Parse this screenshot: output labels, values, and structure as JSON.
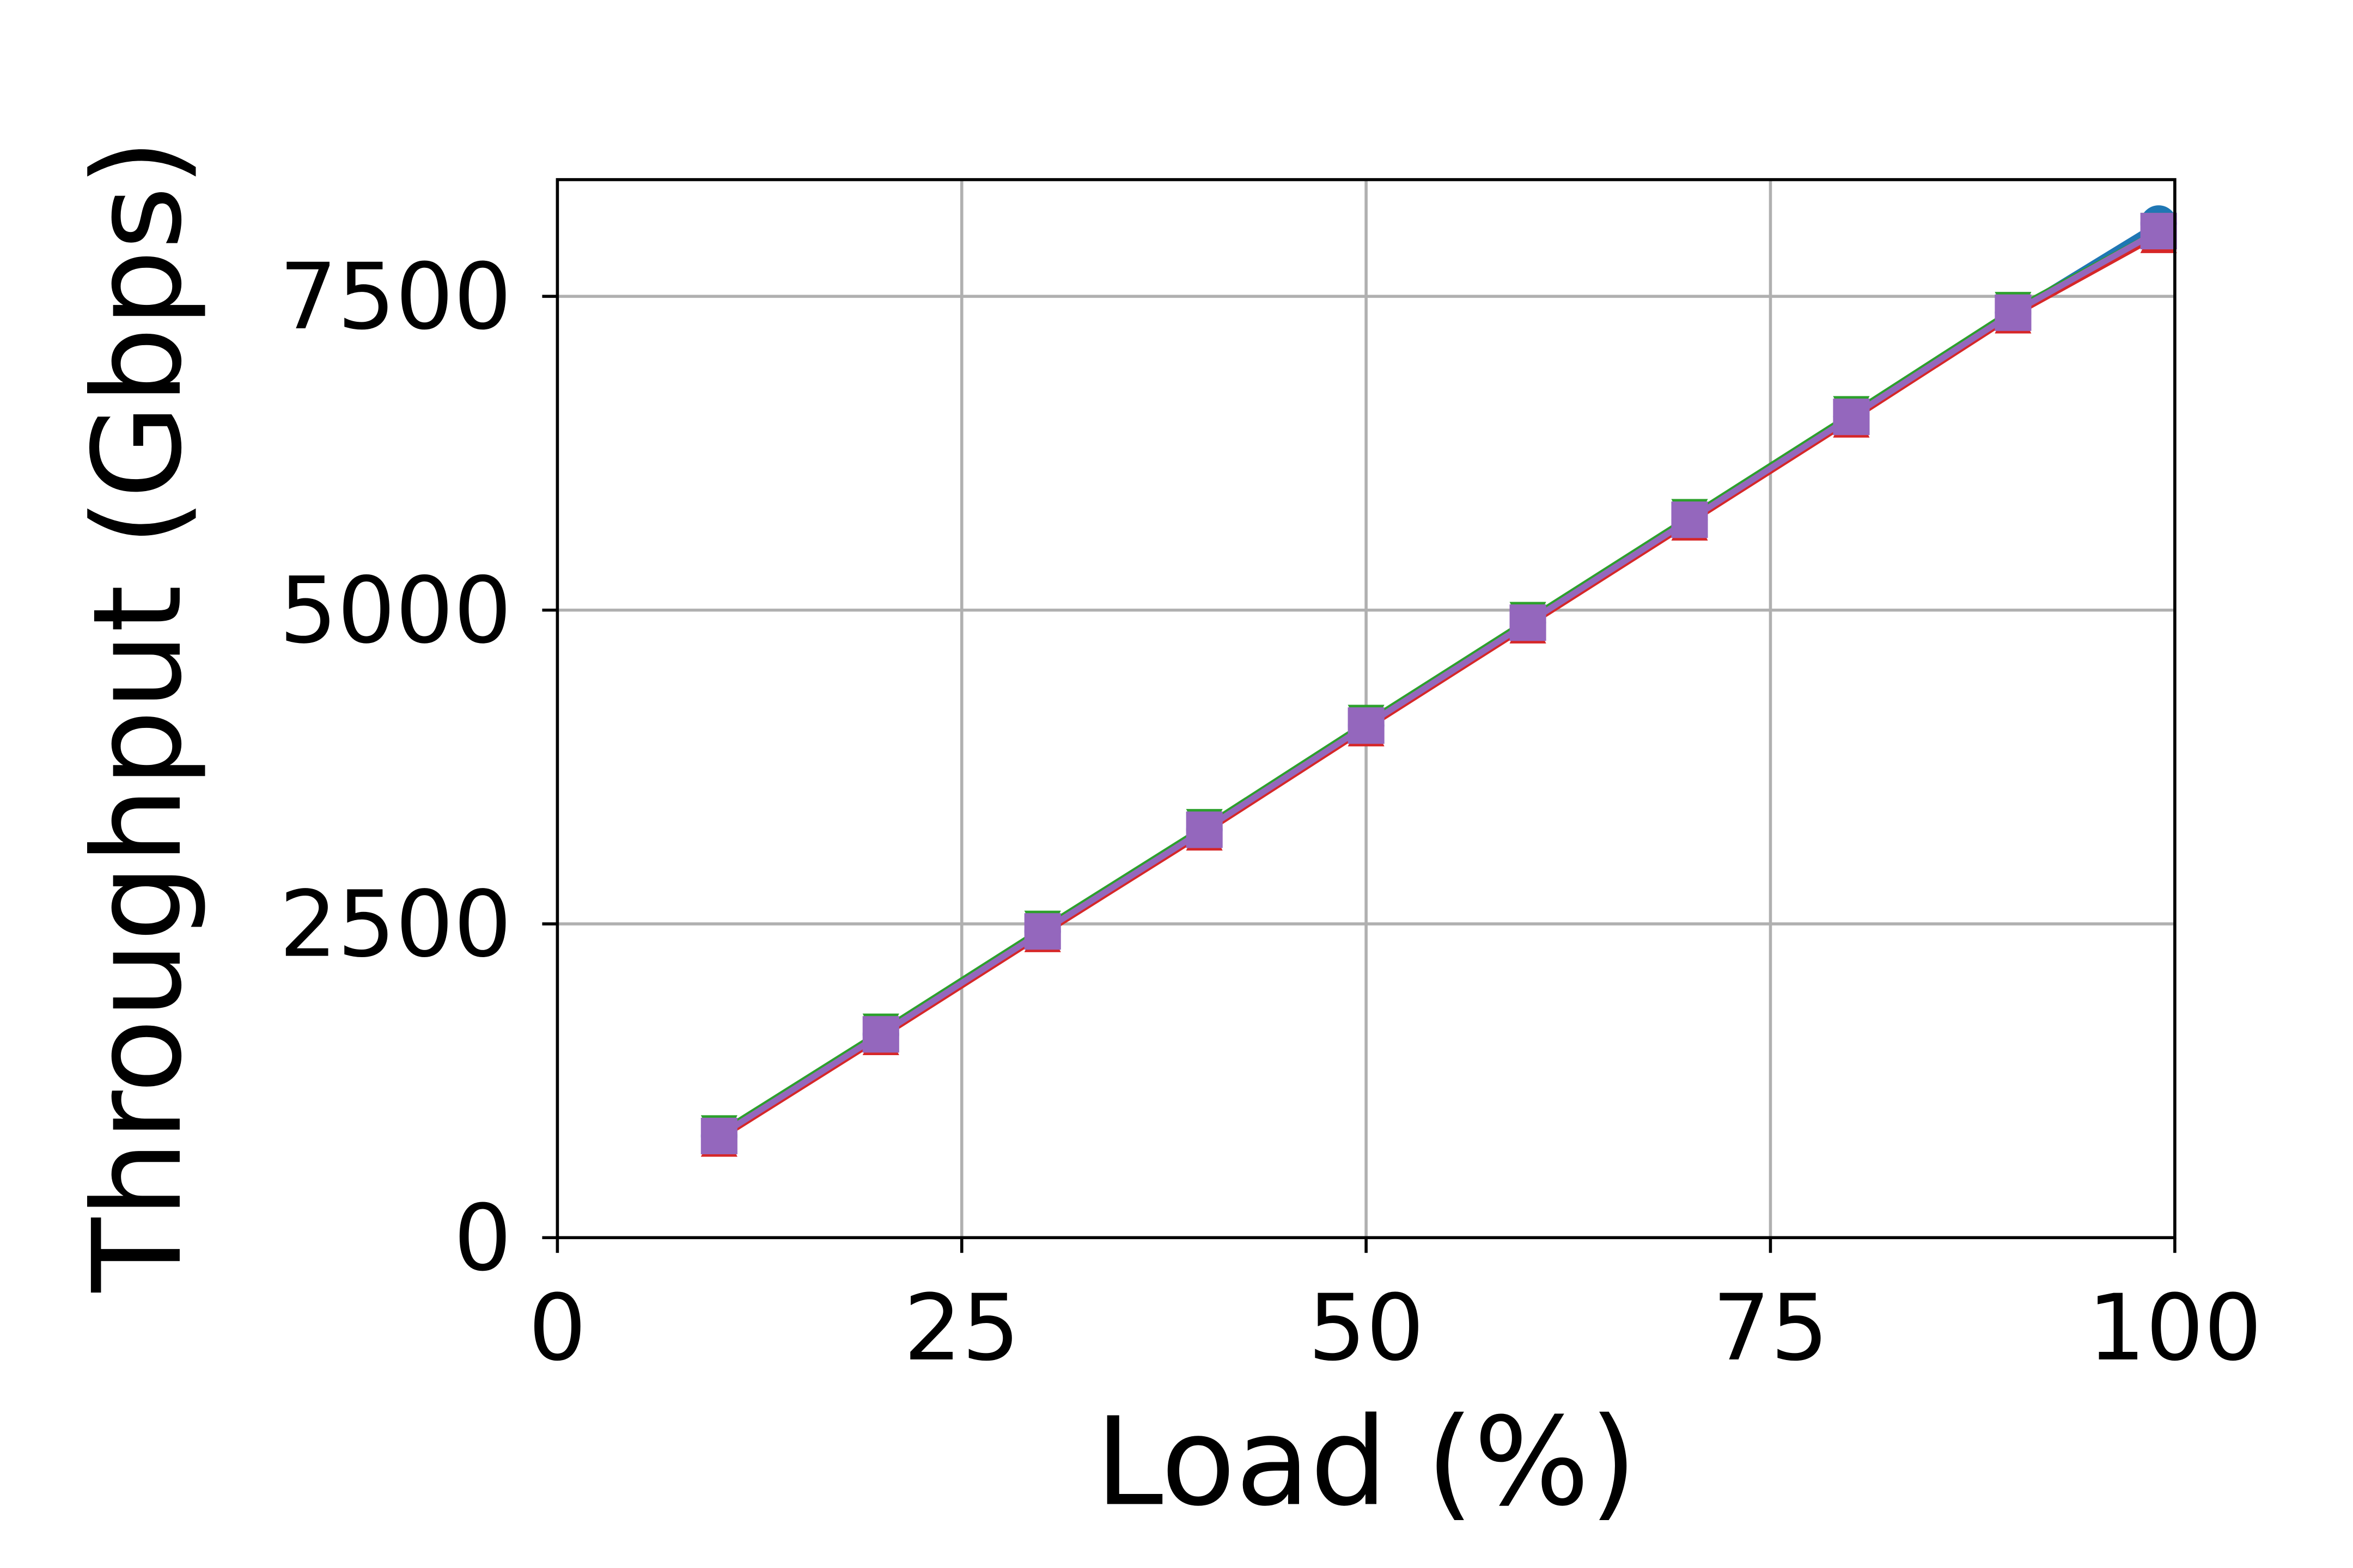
{
  "chart_data": {
    "type": "line",
    "xlabel": "Load (%)",
    "ylabel": "Throughput (Gbps)",
    "xlim": [
      0,
      100
    ],
    "xticks": [
      0,
      25,
      50,
      75,
      100
    ],
    "ylim": [
      0,
      8430
    ],
    "yticks": [
      0,
      2500,
      5000,
      7500
    ],
    "grid": true,
    "x": [
      10,
      20,
      30,
      40,
      50,
      60,
      70,
      80,
      90,
      99
    ],
    "series": [
      {
        "color": "#1f77b4",
        "marker": "circle",
        "values": [
          810,
          1620,
          2440,
          3250,
          4080,
          4900,
          5720,
          6540,
          7370,
          8080
        ]
      },
      {
        "color": "#ff7f0e",
        "marker": "triangle-down",
        "values": [
          805,
          1615,
          2435,
          3245,
          4075,
          4895,
          5715,
          6535,
          7365,
          7990
        ]
      },
      {
        "color": "#2ca02c",
        "marker": "triangle-down",
        "values": [
          830,
          1640,
          2460,
          3270,
          4100,
          4920,
          5740,
          6560,
          7390,
          8020
        ]
      },
      {
        "color": "#d62728",
        "marker": "triangle-up",
        "values": [
          790,
          1600,
          2420,
          3230,
          4060,
          4880,
          5700,
          6520,
          7350,
          7990
        ]
      },
      {
        "color": "#9467bd",
        "marker": "square",
        "values": [
          810,
          1620,
          2440,
          3250,
          4080,
          4900,
          5720,
          6540,
          7370,
          8020
        ]
      }
    ]
  }
}
